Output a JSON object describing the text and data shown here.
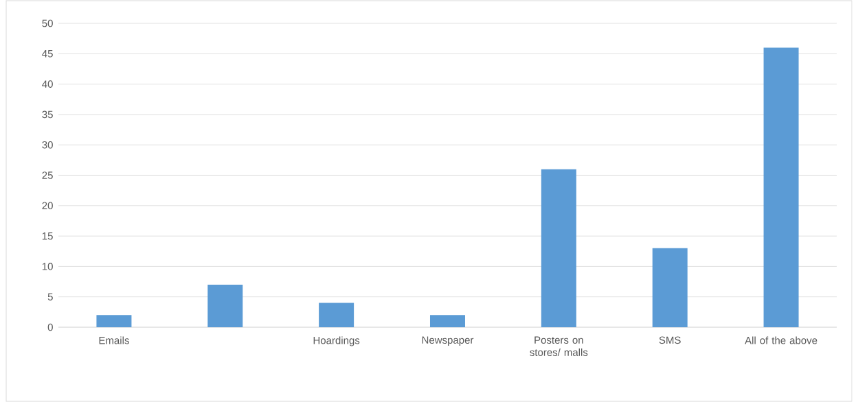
{
  "chart_data": {
    "type": "bar",
    "categories": [
      "Emails",
      null,
      "Hoardings",
      "Newspaper",
      "Posters on stores/ malls",
      "SMS",
      "All of the above"
    ],
    "values": [
      2,
      7,
      4,
      2,
      26,
      13,
      46
    ],
    "color": "#5b9bd5",
    "ylim": [
      0,
      50
    ],
    "yticks": [
      0,
      5,
      10,
      15,
      20,
      25,
      30,
      35,
      40,
      45,
      50
    ],
    "grid": "y"
  }
}
